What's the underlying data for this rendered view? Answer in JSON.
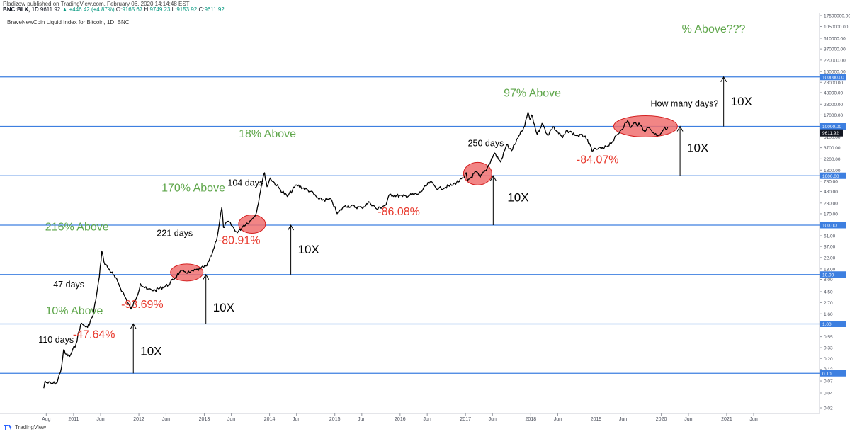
{
  "header": {
    "publisher_line": "Pladizow published on TradingView.com, February 06, 2020 14:14:48 EST",
    "symbol": "BNC:BLX, 1D",
    "price": "9611.92",
    "change": "▲ +446.42 (+4.87%)",
    "ohlc": [
      {
        "label": "O:",
        "value": "9165.67"
      },
      {
        "label": "H:",
        "value": "9749.23"
      },
      {
        "label": "L:",
        "value": "9153.92"
      },
      {
        "label": "C:",
        "value": "9611.92"
      }
    ]
  },
  "chart_title": "BraveNewCoin Liquid Index for Bitcoin, 1D, BNC",
  "footer": {
    "brand": "TradingView"
  },
  "colors": {
    "candle_line": "#000000",
    "horizontal_line": "#3d7fe0",
    "above_text": "#5ea64a",
    "drop_text": "#e8392d",
    "ellipse_fill": "#f07070",
    "ellipse_stroke": "#d42020",
    "axis_box": "#3d7fe0",
    "last_price_box": "#131722"
  },
  "chart_data": {
    "type": "line",
    "scale": "log",
    "grid": false,
    "x_axis_ticks": [
      "Aug",
      "2011",
      "Jun",
      "2012",
      "Jun",
      "2013",
      "Jun",
      "2014",
      "Jun",
      "2015",
      "Jun",
      "2016",
      "Jun",
      "2017",
      "Jun",
      "2018",
      "Jun",
      "2019",
      "Jun",
      "2020",
      "Jun",
      "2021",
      "Jun"
    ],
    "y_axis_ticks": [
      "17500000.00",
      "1050000.00",
      "610000.00",
      "370000.00",
      "220000.00",
      "130000.00",
      "78000.00",
      "48000.00",
      "28000.00",
      "17000.00",
      "6100.00",
      "3700.00",
      "2200.00",
      "1300.00",
      "780.00",
      "480.00",
      "280.00",
      "170.00",
      "61.00",
      "37.00",
      "22.00",
      "13.00",
      "8.00",
      "4.50",
      "2.70",
      "1.60",
      "0.55",
      "0.33",
      "0.20",
      "0.12",
      "0.07",
      "0.04",
      "0.02"
    ],
    "highlighted_levels": [
      "100000.00",
      "10000.00",
      "1000.00",
      "100.00",
      "10.00",
      "1.00",
      "0.10"
    ],
    "last_price_label": "9611.92",
    "series": [
      {
        "values": [
          {
            "x": "2010-07-18",
            "y": 0.05
          },
          {
            "x": "2010-07-25",
            "y": 0.07
          },
          {
            "x": "2010-08-01",
            "y": 0.065
          },
          {
            "x": "2010-09-01",
            "y": 0.062
          },
          {
            "x": "2010-10-01",
            "y": 0.065
          },
          {
            "x": "2010-10-25",
            "y": 0.13
          },
          {
            "x": "2010-11-06",
            "y": 0.3
          },
          {
            "x": "2010-11-15",
            "y": 0.25
          },
          {
            "x": "2010-12-10",
            "y": 0.22
          },
          {
            "x": "2011-01-15",
            "y": 0.4
          },
          {
            "x": "2011-02-10",
            "y": 1.0
          },
          {
            "x": "2011-02-25",
            "y": 0.95
          },
          {
            "x": "2011-03-20",
            "y": 0.85
          },
          {
            "x": "2011-04-20",
            "y": 1.5
          },
          {
            "x": "2011-05-10",
            "y": 4.0
          },
          {
            "x": "2011-05-25",
            "y": 9.0
          },
          {
            "x": "2011-06-08",
            "y": 30.0
          },
          {
            "x": "2011-06-20",
            "y": 18.0
          },
          {
            "x": "2011-07-10",
            "y": 14.0
          },
          {
            "x": "2011-08-10",
            "y": 10.0
          },
          {
            "x": "2011-09-05",
            "y": 7.0
          },
          {
            "x": "2011-10-01",
            "y": 4.5
          },
          {
            "x": "2011-11-18",
            "y": 2.0
          },
          {
            "x": "2011-12-20",
            "y": 3.5
          },
          {
            "x": "2012-01-10",
            "y": 6.5
          },
          {
            "x": "2012-02-15",
            "y": 5.0
          },
          {
            "x": "2012-04-01",
            "y": 4.8
          },
          {
            "x": "2012-06-15",
            "y": 6.2
          },
          {
            "x": "2012-08-15",
            "y": 11.0
          },
          {
            "x": "2012-09-10",
            "y": 11.5
          },
          {
            "x": "2012-10-10",
            "y": 11.0
          },
          {
            "x": "2012-12-10",
            "y": 13.0
          },
          {
            "x": "2013-01-15",
            "y": 15.0
          },
          {
            "x": "2013-02-15",
            "y": 27.0
          },
          {
            "x": "2013-03-15",
            "y": 60.0
          },
          {
            "x": "2013-04-09",
            "y": 230.0
          },
          {
            "x": "2013-04-18",
            "y": 90.0
          },
          {
            "x": "2013-05-15",
            "y": 120.0
          },
          {
            "x": "2013-07-05",
            "y": 70.0
          },
          {
            "x": "2013-08-10",
            "y": 100.0
          },
          {
            "x": "2013-09-20",
            "y": 125.0
          },
          {
            "x": "2013-10-20",
            "y": 180.0
          },
          {
            "x": "2013-11-18",
            "y": 700.0
          },
          {
            "x": "2013-12-04",
            "y": 1150.0
          },
          {
            "x": "2013-12-18",
            "y": 600.0
          },
          {
            "x": "2014-01-05",
            "y": 900.0
          },
          {
            "x": "2014-02-25",
            "y": 550.0
          },
          {
            "x": "2014-04-10",
            "y": 380.0
          },
          {
            "x": "2014-06-01",
            "y": 650.0
          },
          {
            "x": "2014-08-20",
            "y": 480.0
          },
          {
            "x": "2014-10-05",
            "y": 330.0
          },
          {
            "x": "2014-12-15",
            "y": 320.0
          },
          {
            "x": "2015-01-14",
            "y": 170.0
          },
          {
            "x": "2015-03-01",
            "y": 250.0
          },
          {
            "x": "2015-06-01",
            "y": 225.0
          },
          {
            "x": "2015-07-15",
            "y": 290.0
          },
          {
            "x": "2015-08-25",
            "y": 210.0
          },
          {
            "x": "2015-10-15",
            "y": 260.0
          },
          {
            "x": "2015-11-04",
            "y": 420.0
          },
          {
            "x": "2016-01-15",
            "y": 380.0
          },
          {
            "x": "2016-04-15",
            "y": 430.0
          },
          {
            "x": "2016-06-17",
            "y": 750.0
          },
          {
            "x": "2016-08-02",
            "y": 540.0
          },
          {
            "x": "2016-10-15",
            "y": 640.0
          },
          {
            "x": "2016-12-25",
            "y": 900.0
          },
          {
            "x": "2017-01-05",
            "y": 1150.0
          },
          {
            "x": "2017-01-12",
            "y": 780.0
          },
          {
            "x": "2017-03-01",
            "y": 1200.0
          },
          {
            "x": "2017-03-24",
            "y": 930.0
          },
          {
            "x": "2017-05-01",
            "y": 1400.0
          },
          {
            "x": "2017-06-12",
            "y": 2900.0
          },
          {
            "x": "2017-07-16",
            "y": 1900.0
          },
          {
            "x": "2017-08-20",
            "y": 4300.0
          },
          {
            "x": "2017-09-15",
            "y": 3200.0
          },
          {
            "x": "2017-11-01",
            "y": 6800.0
          },
          {
            "x": "2017-11-28",
            "y": 10000.0
          },
          {
            "x": "2017-12-17",
            "y": 19500.0
          },
          {
            "x": "2017-12-28",
            "y": 13500.0
          },
          {
            "x": "2018-01-06",
            "y": 17000.0
          },
          {
            "x": "2018-02-06",
            "y": 6900.0
          },
          {
            "x": "2018-03-05",
            "y": 11500.0
          },
          {
            "x": "2018-04-06",
            "y": 6600.0
          },
          {
            "x": "2018-05-05",
            "y": 9800.0
          },
          {
            "x": "2018-06-28",
            "y": 5900.0
          },
          {
            "x": "2018-07-25",
            "y": 8300.0
          },
          {
            "x": "2018-09-15",
            "y": 6500.0
          },
          {
            "x": "2018-11-01",
            "y": 6400.0
          },
          {
            "x": "2018-11-20",
            "y": 4500.0
          },
          {
            "x": "2018-12-15",
            "y": 3200.0
          },
          {
            "x": "2019-01-15",
            "y": 3600.0
          },
          {
            "x": "2019-02-10",
            "y": 3500.0
          },
          {
            "x": "2019-04-05",
            "y": 5000.0
          },
          {
            "x": "2019-05-15",
            "y": 8000.0
          },
          {
            "x": "2019-06-26",
            "y": 13000.0
          },
          {
            "x": "2019-07-15",
            "y": 9500.0
          },
          {
            "x": "2019-08-05",
            "y": 11800.0
          },
          {
            "x": "2019-09-10",
            "y": 10300.0
          },
          {
            "x": "2019-09-26",
            "y": 8200.0
          },
          {
            "x": "2019-10-26",
            "y": 9500.0
          },
          {
            "x": "2019-11-25",
            "y": 7000.0
          },
          {
            "x": "2019-12-18",
            "y": 6700.0
          },
          {
            "x": "2020-01-15",
            "y": 8800.0
          },
          {
            "x": "2020-02-06",
            "y": 9611.92
          }
        ]
      }
    ],
    "annotations": {
      "above_labels": [
        {
          "text": "10% Above",
          "x": "2011-01-05",
          "y": 1.55
        },
        {
          "text": "216% Above",
          "x": "2011-01-20",
          "y": 78
        },
        {
          "text": "170% Above",
          "x": "2012-11-01",
          "y": 480
        },
        {
          "text": "18% Above",
          "x": "2013-12-20",
          "y": 6000
        },
        {
          "text": "97% Above",
          "x": "2018-01-10",
          "y": 40000
        },
        {
          "text": "% Above???",
          "x": "2020-10-20",
          "y": 800000
        }
      ],
      "drop_labels": [
        {
          "text": "-47.64%",
          "x": "2011-04-25",
          "y": 0.52
        },
        {
          "text": "-93.69%",
          "x": "2012-01-20",
          "y": 2.1
        },
        {
          "text": "-80.91%",
          "x": "2013-07-15",
          "y": 42
        },
        {
          "text": "-86.08%",
          "x": "2015-12-25",
          "y": 160
        },
        {
          "text": "-84.07%",
          "x": "2019-01-10",
          "y": 1800
        }
      ],
      "day_labels": [
        {
          "text": "110 days",
          "x": "2010-09-25",
          "y": 0.42
        },
        {
          "text": "47 days",
          "x": "2010-12-05",
          "y": 5.5
        },
        {
          "text": "221 days",
          "x": "2012-07-20",
          "y": 60
        },
        {
          "text": "104 days",
          "x": "2013-08-20",
          "y": 620
        },
        {
          "text": "250 days",
          "x": "2017-04-25",
          "y": 4000
        },
        {
          "text": "How many days?",
          "x": "2020-05-10",
          "y": 25000
        }
      ],
      "multiplier_arrows": [
        {
          "text": "10X",
          "x": "2011-12-01",
          "from": 0.1,
          "to": 1.0
        },
        {
          "text": "10X",
          "x": "2013-01-10",
          "from": 1.0,
          "to": 10.0
        },
        {
          "text": "10X",
          "x": "2014-04-30",
          "from": 10.0,
          "to": 100.0
        },
        {
          "text": "10X",
          "x": "2017-06-05",
          "from": 100.0,
          "to": 1000.0
        },
        {
          "text": "10X",
          "x": "2020-04-15",
          "from": 1000.0,
          "to": 10000.0
        },
        {
          "text": "10X",
          "x": "2020-12-15",
          "from": 10000.0,
          "to": 100000.0
        }
      ],
      "highlight_ellipses": [
        {
          "x": "2012-09-25",
          "y": 11.0
        },
        {
          "x": "2013-09-25",
          "y": 105.0
        },
        {
          "x": "2017-03-10",
          "y": 1100.0
        },
        {
          "x": "2019-10-05",
          "y": 10000.0
        }
      ]
    }
  }
}
